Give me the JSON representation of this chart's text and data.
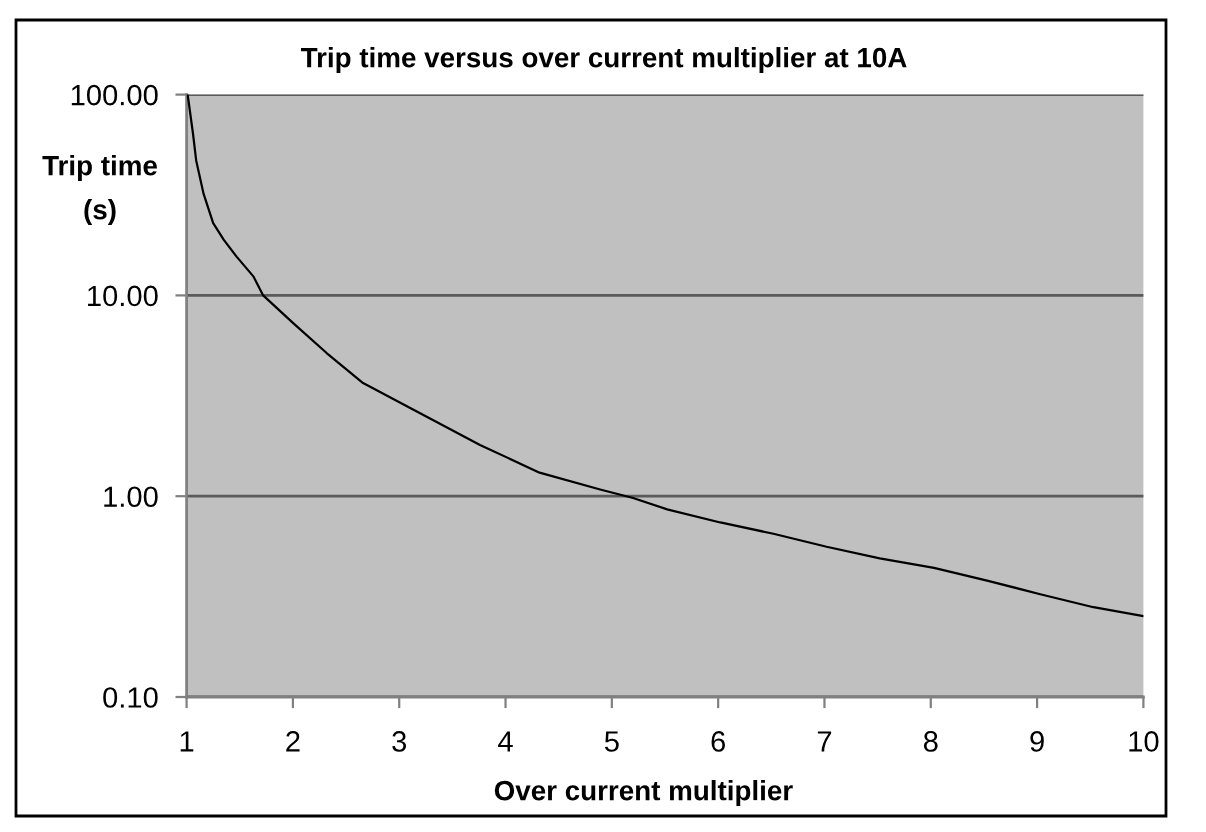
{
  "chart_data": {
    "type": "line",
    "title": "Trip time versus over current multiplier at 10A",
    "xlabel": "Over current multiplier",
    "ylabel": "Trip time\n(s)",
    "x": [
      1.01,
      1.06,
      1.09,
      1.16,
      1.25,
      1.35,
      1.47,
      1.63,
      1.72,
      2.0,
      2.32,
      2.66,
      3.13,
      3.76,
      4.32,
      4.89,
      5.2,
      5.52,
      6.02,
      6.52,
      7.02,
      7.52,
      8.03,
      8.53,
      9.03,
      9.53,
      10.0
    ],
    "series": [
      {
        "color": "#000000",
        "values": [
          100,
          64,
          47,
          32,
          22.9,
          18.9,
          15.6,
          12.4,
          10.0,
          7.3,
          5.15,
          3.66,
          2.7,
          1.8,
          1.31,
          1.08,
          0.98,
          0.86,
          0.74,
          0.65,
          0.56,
          0.49,
          0.44,
          0.38,
          0.325,
          0.28,
          0.253
        ]
      }
    ],
    "log": "y",
    "xlim": [
      1,
      10
    ],
    "ylim": [
      0.1,
      100
    ],
    "xticks": [
      1,
      2,
      3,
      4,
      5,
      6,
      7,
      8,
      9,
      10
    ],
    "yticks": [
      {
        "value": 0.1,
        "label": "0.10"
      },
      {
        "value": 1,
        "label": "1.00"
      },
      {
        "value": 10,
        "label": "10.00"
      },
      {
        "value": 100,
        "label": "100.00"
      }
    ],
    "grid": "y"
  }
}
